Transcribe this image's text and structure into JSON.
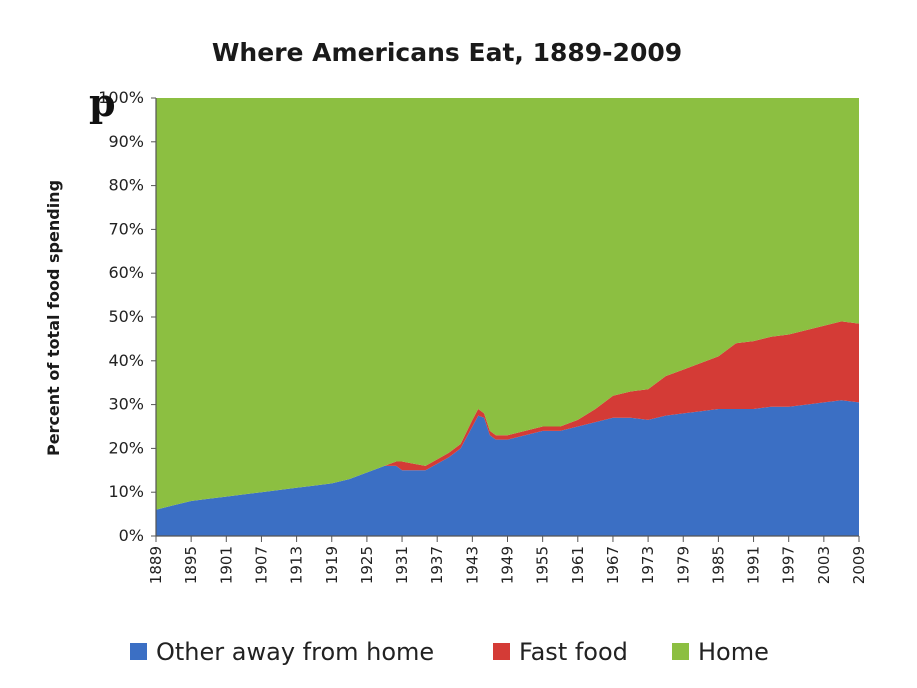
{
  "overlay": {
    "pinterest_icon": "pinterest-icon"
  },
  "chart_data": {
    "type": "area",
    "stacked": true,
    "title": "Where Americans Eat, 1889-2009",
    "xlabel": "",
    "ylabel": "Percent of total food spending",
    "xlim": [
      1889,
      2009
    ],
    "ylim": [
      0,
      100
    ],
    "yticks": [
      "0%",
      "10%",
      "20%",
      "30%",
      "40%",
      "50%",
      "60%",
      "70%",
      "80%",
      "90%",
      "100%"
    ],
    "xticks": [
      "1889",
      "1895",
      "1901",
      "1907",
      "1913",
      "1919",
      "1925",
      "1931",
      "1937",
      "1943",
      "1949",
      "1955",
      "1961",
      "1967",
      "1973",
      "1979",
      "1985",
      "1991",
      "1997",
      "2003",
      "2009"
    ],
    "grid": false,
    "legend_position": "bottom",
    "colors": {
      "other": "#3b6fc4",
      "fast": "#d43b36",
      "home": "#8cbf41"
    },
    "x": [
      1889,
      1892,
      1895,
      1898,
      1901,
      1904,
      1907,
      1910,
      1913,
      1916,
      1919,
      1922,
      1925,
      1928,
      1930,
      1931,
      1933,
      1935,
      1937,
      1939,
      1941,
      1943,
      1944,
      1945,
      1946,
      1947,
      1949,
      1952,
      1955,
      1958,
      1961,
      1964,
      1967,
      1970,
      1973,
      1976,
      1979,
      1982,
      1985,
      1988,
      1991,
      1994,
      1997,
      2000,
      2003,
      2006,
      2009
    ],
    "series": [
      {
        "name": "Other away from home",
        "values": [
          6,
          7,
          8,
          8.5,
          9,
          9.5,
          10,
          10.5,
          11,
          11.5,
          12,
          13,
          14.5,
          16,
          16,
          15,
          15,
          15,
          16.5,
          18,
          20,
          25,
          27.5,
          27,
          23,
          22,
          22,
          23,
          24,
          24,
          25,
          26,
          27,
          27,
          26.5,
          27.5,
          28,
          28.5,
          29,
          29,
          29,
          29.5,
          29.5,
          30,
          30.5,
          31,
          30.5
        ]
      },
      {
        "name": "Fast food",
        "values": [
          0,
          0,
          0,
          0,
          0,
          0,
          0,
          0,
          0,
          0,
          0,
          0,
          0,
          0,
          1,
          2,
          1.5,
          1,
          1,
          1,
          1,
          1.5,
          1.5,
          1,
          1,
          1,
          1,
          1,
          1,
          1,
          1.5,
          3,
          5,
          6,
          7,
          9,
          10,
          11,
          12,
          15,
          15.5,
          16,
          16.5,
          17,
          17.5,
          18,
          18
        ]
      },
      {
        "name": "Home",
        "values": [
          94,
          93,
          92,
          91.5,
          91,
          90.5,
          90,
          89.5,
          89,
          88.5,
          88,
          87,
          85.5,
          84,
          83,
          83,
          83.5,
          84,
          82.5,
          81,
          79,
          73.5,
          71,
          72,
          76,
          77,
          77,
          76,
          75,
          75,
          73.5,
          71,
          68,
          67,
          66.5,
          63.5,
          62,
          60.5,
          59,
          56,
          55.5,
          54.5,
          54,
          53,
          52,
          51,
          51.5
        ]
      }
    ]
  }
}
